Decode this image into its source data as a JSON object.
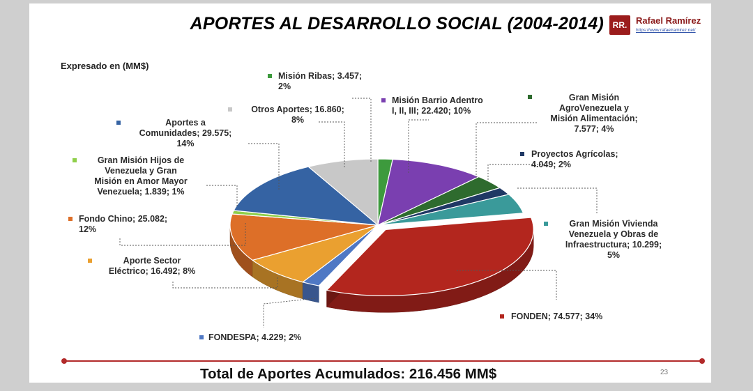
{
  "header": {
    "title": "APORTES AL DESARROLLO SOCIAL (2004-2014)",
    "logo_text": "RR.",
    "brand_name": "Rafael Ramírez",
    "brand_url": "https://www.rafaelramirez.net/"
  },
  "footer": {
    "total_text": "Total de Aportes Acumulados: 216.456 MM$",
    "page_number": "23"
  },
  "chart_data": {
    "type": "pie",
    "subtitle": "Expresado en (MM$)",
    "slices": [
      {
        "name": "Misión Ribas",
        "value": 3.457,
        "percent": 2,
        "color": "#3d9a3d",
        "label_lines": [
          "Misión Ribas; 3.457;",
          "2%"
        ]
      },
      {
        "name": "Misión Barrio Adentro I, II, III",
        "value": 22.42,
        "percent": 10,
        "color": "#7a3fb0",
        "label_lines": [
          "Misión Barrio Adentro",
          "I, II, III; 22.420; 10%"
        ]
      },
      {
        "name": "Gran Misión AgroVenezuela y Misión Alimentación",
        "value": 7.577,
        "percent": 4,
        "color": "#2e6b2e",
        "label_lines": [
          "Gran Misión",
          "AgroVenezuela y",
          "Misión Alimentación;",
          "7.577; 4%"
        ]
      },
      {
        "name": "Proyectos Agrícolas",
        "value": 4.049,
        "percent": 2,
        "color": "#1f3864",
        "label_lines": [
          "Proyectos Agrícolas;",
          "4.049; 2%"
        ]
      },
      {
        "name": "Gran Misión Vivienda Venezuela y Obras de Infraestructura",
        "value": 10.299,
        "percent": 5,
        "color": "#3a9a9a",
        "label_lines": [
          "Gran Misión Vivienda",
          "Venezuela y Obras de",
          "Infraestructura; 10.299;",
          "5%"
        ]
      },
      {
        "name": "FONDEN",
        "value": 74.577,
        "percent": 34,
        "color": "#b3261e",
        "label_lines": [
          "FONDEN; 74.577; 34%"
        ]
      },
      {
        "name": "FONDESPA",
        "value": 4.229,
        "percent": 2,
        "color": "#4f78c4",
        "label_lines": [
          "FONDESPA; 4.229; 2%"
        ]
      },
      {
        "name": "Aporte Sector Eléctrico",
        "value": 16.492,
        "percent": 8,
        "color": "#eaa030",
        "label_lines": [
          "Aporte Sector",
          "Eléctrico; 16.492; 8%"
        ]
      },
      {
        "name": "Fondo Chino",
        "value": 25.082,
        "percent": 12,
        "color": "#dd6f28",
        "label_lines": [
          "Fondo Chino; 25.082;",
          "12%"
        ]
      },
      {
        "name": "Gran Misión Hijos de Venezuela y Gran Misión en Amor Mayor Venezuela",
        "value": 1.839,
        "percent": 1,
        "color": "#8fcf4a",
        "label_lines": [
          "Gran Misión Hijos de",
          "Venezuela y Gran",
          "Misión en Amor Mayor",
          "Venezuela; 1.839; 1%"
        ]
      },
      {
        "name": "Aportes a Comunidades",
        "value": 29.575,
        "percent": 14,
        "color": "#3563a3",
        "label_lines": [
          "Aportes a",
          "Comunidades; 29.575;",
          "14%"
        ]
      },
      {
        "name": "Otros Aportes",
        "value": 16.86,
        "percent": 8,
        "color": "#c8c8c8",
        "label_lines": [
          "Otros Aportes; 16.860;",
          "8%"
        ]
      }
    ]
  }
}
